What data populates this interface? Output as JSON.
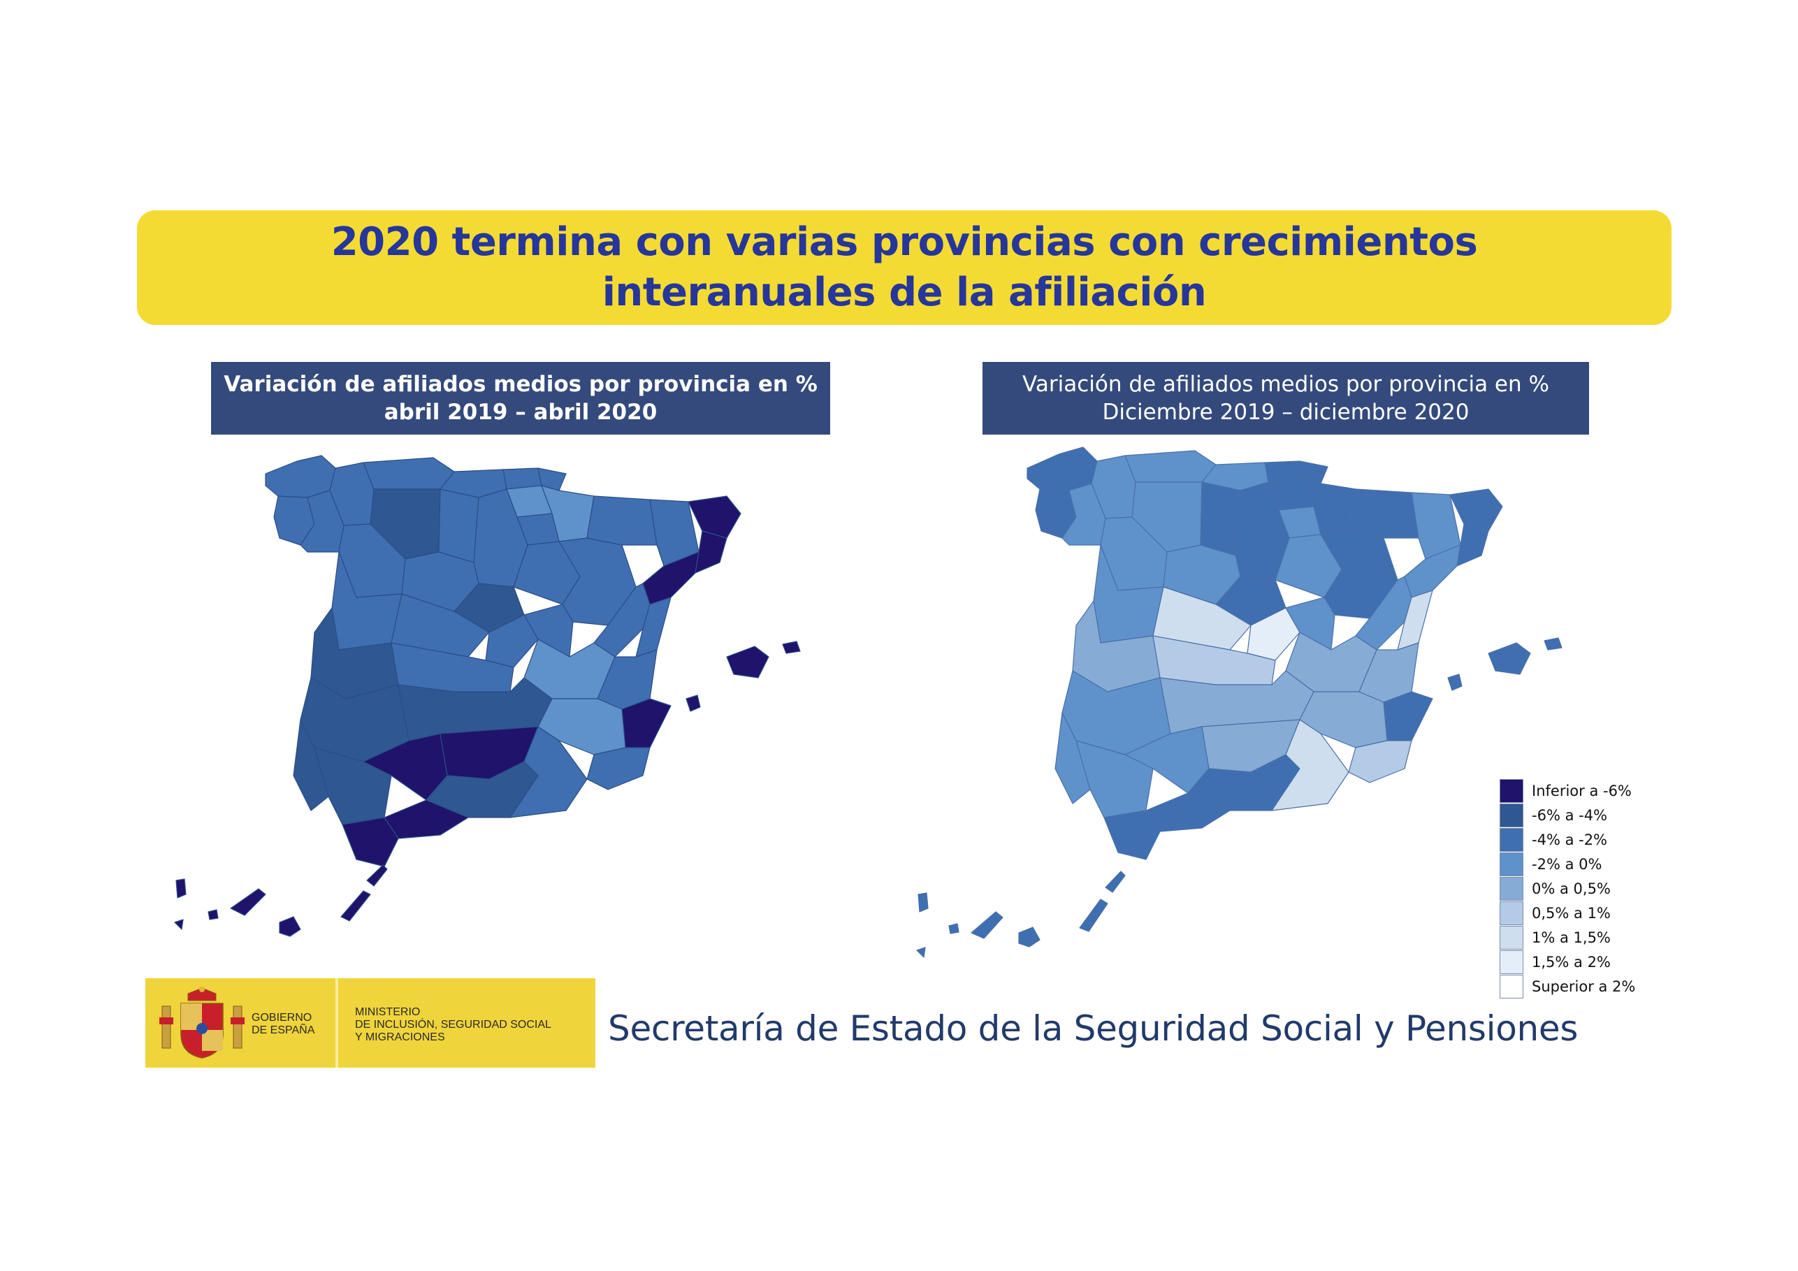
{
  "banner": {
    "line1": "2020 termina con varias provincias con crecimientos",
    "line2": "interanuales de la afiliación"
  },
  "maps": {
    "left": {
      "title_line1": "Variación de afiliados medios por provincia en %",
      "title_line2": "abril 2019 – abril 2020"
    },
    "right": {
      "title_line1": "Variación de afiliados medios por provincia en %",
      "title_line2": "Diciembre 2019 – diciembre 2020"
    }
  },
  "colors": {
    "inferior_-6": "#1f136b",
    "-6_-4": "#2f5791",
    "-4_-2": "#3f6fb1",
    "-2_0": "#5f92cb",
    "0_0.5": "#86acd6",
    "0.5_1": "#b3cbe6",
    "1_1.5": "#cfdeef",
    "1.5_2": "#e4eef8",
    "superior_2": "#ffffff"
  },
  "legend": [
    {
      "label": "Inferior a -6%",
      "color": "#1f136b"
    },
    {
      "label": "-6% a -4%",
      "color": "#2f5791"
    },
    {
      "label": "-4% a -2%",
      "color": "#3f6fb1"
    },
    {
      "label": "-2% a 0%",
      "color": "#5f92cb"
    },
    {
      "label": "0% a 0,5%",
      "color": "#86acd6"
    },
    {
      "label": "0,5% a 1%",
      "color": "#b3cbe6"
    },
    {
      "label": "1% a 1,5%",
      "color": "#cfdeef"
    },
    {
      "label": "1,5% a 2%",
      "color": "#e4eef8"
    },
    {
      "label": "Superior a 2%",
      "color": "#ffffff"
    }
  ],
  "logo": {
    "gov_line1": "Gobierno",
    "gov_line2": "de España",
    "min_line1": "Ministerio",
    "min_line2": "de Inclusión, Seguridad Social",
    "min_line3": "y Migraciones"
  },
  "footer": {
    "text": "Secretaría de Estado de la Seguridad Social y Pensiones"
  }
}
